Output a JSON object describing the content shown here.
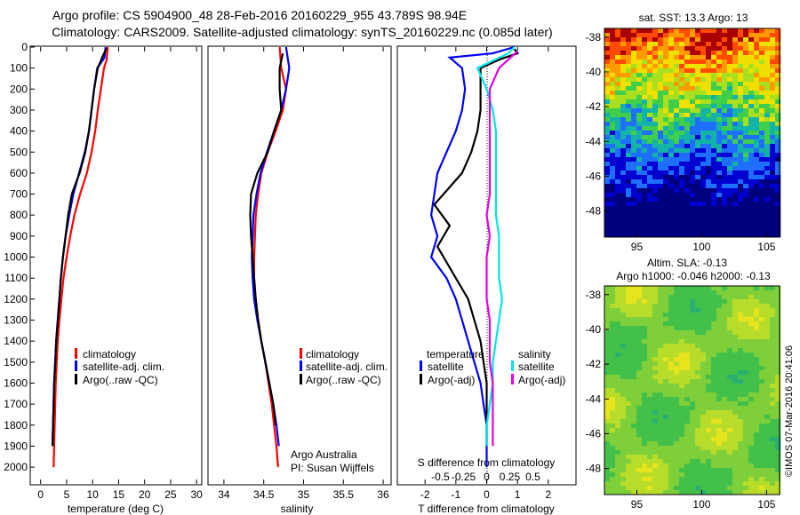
{
  "header": {
    "line1": "Argo profile: CS 5904900_48 28-Feb-2016 20160229_955 43.789S 98.94E",
    "line2": "Climatology: CARS2009. Satellite-adjusted climatology: synTS_20160229.nc (0.085d later)"
  },
  "colors": {
    "climatology": "#ff0000",
    "satellite": "#0000ff",
    "argo": "#000000",
    "sal_satellite": "#00e5e5",
    "sal_argo": "#e500e5"
  },
  "chart_data": [
    {
      "type": "line",
      "id": "temperature",
      "xlabel": "temperature (deg C)",
      "xlim": [
        -2,
        31
      ],
      "ylim": [
        2080,
        0
      ],
      "xticks": [
        "0",
        "5",
        "10",
        "15",
        "20",
        "25",
        "30"
      ],
      "xtick_values": [
        0,
        5,
        10,
        15,
        20,
        25,
        30
      ],
      "yticks": [
        "0",
        "100",
        "200",
        "300",
        "400",
        "500",
        "600",
        "700",
        "800",
        "900",
        "1000",
        "1100",
        "1200",
        "1300",
        "1400",
        "1500",
        "1600",
        "1700",
        "1800",
        "1900",
        "2000"
      ],
      "ytick_values": [
        0,
        100,
        200,
        300,
        400,
        500,
        600,
        700,
        800,
        900,
        1000,
        1100,
        1200,
        1300,
        1400,
        1500,
        1600,
        1700,
        1800,
        1900,
        2000
      ],
      "legend": [
        "climatology",
        "satellite-adj. clim.",
        "Argo(..raw -QC)"
      ],
      "series": [
        {
          "name": "climatology",
          "color": "#ff0000",
          "x": [
            12.9,
            12.7,
            12.2,
            11.6,
            11.0,
            10.5,
            9.8,
            8.9,
            7.6,
            6.5,
            5.7,
            5.0,
            4.4,
            4.0,
            3.6,
            3.3,
            3.1,
            2.9,
            2.8,
            2.7,
            2.6,
            2.5
          ],
          "y": [
            0,
            60,
            100,
            200,
            300,
            400,
            500,
            600,
            700,
            800,
            900,
            1000,
            1100,
            1200,
            1300,
            1400,
            1500,
            1600,
            1700,
            1800,
            1900,
            2000
          ]
        },
        {
          "name": "satellite-adj. clim.",
          "color": "#0000ff",
          "x": [
            12.5,
            12.3,
            10.9,
            10.3,
            9.8,
            9.3,
            8.5,
            7.4,
            6.3,
            5.5,
            4.8,
            4.3,
            3.9,
            3.6,
            3.3,
            3.0,
            2.8,
            2.6,
            2.5,
            2.4,
            2.3
          ],
          "y": [
            0,
            50,
            100,
            200,
            300,
            400,
            500,
            600,
            700,
            800,
            900,
            1000,
            1100,
            1200,
            1300,
            1400,
            1500,
            1600,
            1700,
            1800,
            1900
          ]
        },
        {
          "name": "Argo(..raw -QC)",
          "color": "#000000",
          "x": [
            12.7,
            12.0,
            11.0,
            10.3,
            9.8,
            9.3,
            8.6,
            7.5,
            6.0,
            5.3,
            4.8,
            4.3,
            3.9,
            3.6,
            3.3,
            3.0,
            2.8,
            2.6,
            2.5,
            2.4,
            2.3
          ],
          "y": [
            5,
            40,
            100,
            200,
            300,
            400,
            500,
            600,
            700,
            800,
            900,
            1000,
            1100,
            1200,
            1300,
            1400,
            1500,
            1600,
            1700,
            1800,
            1900
          ]
        }
      ]
    },
    {
      "type": "line",
      "id": "salinity",
      "xlabel": "salinity",
      "xlim": [
        33.8,
        36.1
      ],
      "ylim": [
        2080,
        0
      ],
      "xticks": [
        "34",
        "34.5",
        "35",
        "35.5",
        "36"
      ],
      "xtick_values": [
        34,
        34.5,
        35,
        35.5,
        36
      ],
      "legend": [
        "climatology",
        "satellite-adj. clim.",
        "Argo(..raw -QC)"
      ],
      "annotation": [
        "Argo Australia",
        "PI: Susan Wijffels"
      ],
      "series": [
        {
          "name": "climatology",
          "color": "#ff0000",
          "x": [
            34.7,
            34.72,
            34.78,
            34.74,
            34.65,
            34.55,
            34.47,
            34.43,
            34.4,
            34.39,
            34.38,
            34.38,
            34.4,
            34.43,
            34.47,
            34.52,
            34.56,
            34.6,
            34.63,
            34.66,
            34.68
          ],
          "y": [
            0,
            100,
            200,
            300,
            400,
            500,
            600,
            700,
            800,
            900,
            1000,
            1100,
            1200,
            1300,
            1400,
            1500,
            1600,
            1700,
            1800,
            1900,
            2000
          ]
        },
        {
          "name": "satellite-adj. clim.",
          "color": "#0000ff",
          "x": [
            34.78,
            34.82,
            34.78,
            34.72,
            34.63,
            34.54,
            34.46,
            34.41,
            34.37,
            34.36,
            34.35,
            34.36,
            34.38,
            34.42,
            34.47,
            34.52,
            34.57,
            34.62,
            34.66,
            34.69
          ],
          "y": [
            0,
            100,
            200,
            300,
            400,
            500,
            600,
            700,
            800,
            900,
            1000,
            1100,
            1200,
            1300,
            1400,
            1500,
            1600,
            1700,
            1800,
            1900
          ]
        },
        {
          "name": "Argo(..raw -QC)",
          "color": "#000000",
          "x": [
            34.74,
            34.7,
            34.7,
            34.72,
            34.63,
            34.55,
            34.42,
            34.34,
            34.33,
            34.34,
            34.36,
            34.38,
            34.4,
            34.43,
            34.47,
            34.52,
            34.57,
            34.62,
            34.65
          ],
          "y": [
            30,
            100,
            200,
            300,
            400,
            500,
            600,
            700,
            800,
            900,
            1000,
            1100,
            1200,
            1300,
            1400,
            1500,
            1600,
            1700,
            1800
          ]
        }
      ]
    },
    {
      "type": "line",
      "id": "difference",
      "xlabel": "T difference from climatology",
      "xlabel2": "S difference from climatology",
      "xlim": [
        -2.9,
        2.9
      ],
      "ylim": [
        2080,
        0
      ],
      "xticks": [
        "-2",
        "-1",
        "0",
        "1",
        "2"
      ],
      "xtick_values": [
        -2,
        -1,
        0,
        1,
        2
      ],
      "sticks": [
        "-0.5",
        "-0.25",
        "0",
        "0.25",
        "0.5"
      ],
      "stick_values": [
        -1.5,
        -0.75,
        0,
        0.75,
        1.5
      ],
      "legend_left_title": "temperature",
      "legend_right_title": "salinity",
      "legend": [
        "satellite",
        "Argo(-adj)",
        "satellite",
        "Argo(-adj)"
      ],
      "series": [
        {
          "name": "satellite",
          "color": "#0000ff",
          "x": [
            0.9,
            0.2,
            -1.2,
            -0.8,
            -0.7,
            -0.8,
            -1.0,
            -1.3,
            -1.6,
            -1.7,
            -1.8,
            -1.6,
            -1.8,
            -1.3,
            -1.0,
            -0.8,
            -0.6,
            -0.4,
            -0.2,
            -0.1,
            0.0,
            0.0,
            0.0,
            0.0
          ],
          "y": [
            0,
            30,
            50,
            100,
            200,
            300,
            400,
            500,
            600,
            700,
            800,
            900,
            1000,
            1100,
            1200,
            1300,
            1400,
            1500,
            1600,
            1700,
            1800,
            1900,
            1950,
            2000
          ]
        },
        {
          "name": "Argo(-adj)",
          "color": "#000000",
          "x": [
            0.9,
            1.0,
            0.4,
            -0.2,
            -0.2,
            -0.2,
            -0.3,
            -0.5,
            -0.8,
            -1.7,
            -1.2,
            -1.6,
            -1.4,
            -1.0,
            -0.6,
            -0.4,
            -0.2,
            -0.1,
            0.0,
            0.0,
            0.0
          ],
          "y": [
            10,
            30,
            60,
            100,
            200,
            300,
            400,
            500,
            600,
            750,
            850,
            950,
            1000,
            1100,
            1200,
            1300,
            1400,
            1500,
            1600,
            1700,
            1900
          ]
        },
        {
          "name": "satellite",
          "color": "#00e5e5",
          "x": [
            0.9,
            0.7,
            -0.3,
            0.0,
            0.2,
            0.3,
            0.3,
            0.3,
            0.3,
            0.3,
            0.4,
            0.4,
            0.4,
            0.5,
            0.4,
            0.3,
            0.2,
            0.2,
            0.1,
            0.0,
            0.0
          ],
          "y": [
            0,
            30,
            100,
            200,
            300,
            400,
            500,
            600,
            700,
            800,
            900,
            1000,
            1100,
            1200,
            1300,
            1400,
            1500,
            1600,
            1700,
            1800,
            1900
          ]
        },
        {
          "name": "Argo(-adj)",
          "color": "#e500e5",
          "x": [
            1.0,
            0.4,
            0.1,
            0.1,
            0.1,
            0.1,
            0.1,
            0.1,
            0.0,
            0.1,
            0.0,
            0.0,
            0.0,
            0.1,
            0.1,
            0.1,
            0.2,
            0.2,
            0.2,
            0.2
          ],
          "y": [
            20,
            100,
            200,
            300,
            400,
            500,
            600,
            700,
            800,
            900,
            1000,
            1100,
            1200,
            1300,
            1400,
            1500,
            1600,
            1700,
            1800,
            1900
          ]
        }
      ]
    },
    {
      "type": "heatmap",
      "id": "sst",
      "title": "sat. SST: 13.3 Argo: 13",
      "xticks": [
        "95",
        "100",
        "105"
      ],
      "xtick_values": [
        95,
        100,
        105
      ],
      "yticks": [
        "-38",
        "-40",
        "-42",
        "-44",
        "-46",
        "-48"
      ],
      "ytick_values": [
        -38,
        -40,
        -42,
        -44,
        -46,
        -48
      ],
      "xlim": [
        92.5,
        106
      ],
      "ylim": [
        -49.5,
        -37.5
      ]
    },
    {
      "type": "heatmap",
      "id": "sla",
      "title": "Altim. SLA: -0.13",
      "subtitle": "Argo h1000: -0.046 h2000: -0.13",
      "xticks": [
        "95",
        "100",
        "105"
      ],
      "xtick_values": [
        95,
        100,
        105
      ],
      "yticks": [
        "-38",
        "-40",
        "-42",
        "-44",
        "-46",
        "-48"
      ],
      "ytick_values": [
        -38,
        -40,
        -42,
        -44,
        -46,
        -48
      ],
      "xlim": [
        92.5,
        106
      ],
      "ylim": [
        -49.5,
        -37.5
      ]
    }
  ],
  "footer": {
    "credit": "©IMOS 07-Mar-2016 20:41:06"
  }
}
